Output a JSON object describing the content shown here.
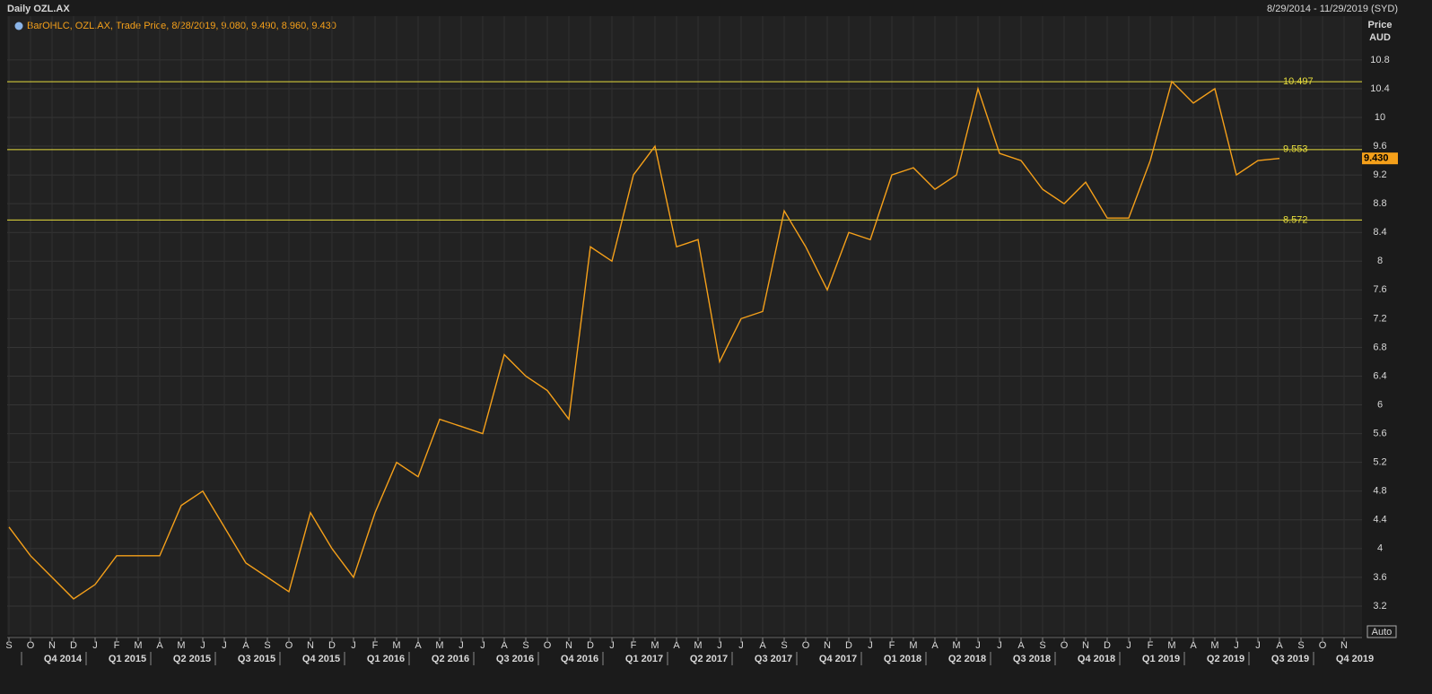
{
  "chart_data": {
    "type": "line",
    "title": "Daily OZL.AX",
    "date_range": "8/29/2014 - 11/29/2019 (SYD)",
    "legend_text": "BarOHLC, OZL.AX, Trade Price, 8/28/2019, 9.080, 9.490, 8.960, 9.430",
    "y_axis_label": "Price",
    "y_axis_unit": "AUD",
    "scale_mode": "Auto",
    "categories": [
      "S",
      "O",
      "N",
      "D",
      "J",
      "F",
      "M",
      "A",
      "M",
      "J",
      "J",
      "A",
      "S",
      "O",
      "N",
      "D",
      "J",
      "F",
      "M",
      "A",
      "M",
      "J",
      "J",
      "A",
      "S",
      "O",
      "N",
      "D",
      "J",
      "F",
      "M",
      "A",
      "M",
      "J",
      "J",
      "A",
      "S",
      "O",
      "N",
      "D",
      "J",
      "F",
      "M",
      "A",
      "M",
      "J",
      "J",
      "A",
      "S",
      "O",
      "N",
      "D",
      "J",
      "F",
      "M",
      "A",
      "M",
      "J",
      "J",
      "A",
      "S",
      "O",
      "N"
    ],
    "quarters": [
      "Q4 2014",
      "Q1 2015",
      "Q2 2015",
      "Q3 2015",
      "Q4 2015",
      "Q1 2016",
      "Q2 2016",
      "Q3 2016",
      "Q4 2016",
      "Q1 2017",
      "Q2 2017",
      "Q3 2017",
      "Q4 2017",
      "Q1 2018",
      "Q2 2018",
      "Q3 2018",
      "Q4 2018",
      "Q1 2019",
      "Q2 2019",
      "Q3 2019",
      "Q4 2019"
    ],
    "series": [
      {
        "name": "OZL.AX",
        "color": "#f5a01a",
        "values": [
          4.3,
          3.9,
          3.6,
          3.3,
          3.5,
          3.9,
          3.9,
          3.9,
          4.6,
          4.8,
          4.3,
          3.8,
          3.6,
          3.4,
          4.5,
          4.0,
          3.6,
          4.5,
          5.2,
          5.0,
          5.8,
          5.7,
          5.6,
          6.7,
          6.4,
          6.2,
          5.8,
          8.2,
          8.0,
          9.2,
          9.6,
          8.2,
          8.3,
          6.6,
          7.2,
          7.3,
          8.7,
          8.2,
          7.6,
          8.4,
          8.3,
          9.2,
          9.3,
          9.0,
          9.2,
          10.4,
          9.5,
          9.4,
          9.0,
          8.8,
          9.1,
          8.6,
          8.6,
          9.4,
          10.5,
          10.2,
          10.4,
          9.2,
          9.4,
          9.43,
          null,
          null,
          null
        ]
      }
    ],
    "levels": [
      10.497,
      9.553,
      8.572
    ],
    "level_color": "#e6dc3c",
    "last_price": {
      "value": 9.43,
      "label": "9.430"
    },
    "ylim": [
      2.8,
      11.41
    ],
    "yticks": [
      3.2,
      3.6,
      4,
      4.4,
      4.8,
      5.2,
      5.6,
      6,
      6.4,
      6.8,
      7.2,
      7.6,
      8,
      8.4,
      8.8,
      9.2,
      9.6,
      10,
      10.4,
      10.8
    ],
    "grid": true
  }
}
